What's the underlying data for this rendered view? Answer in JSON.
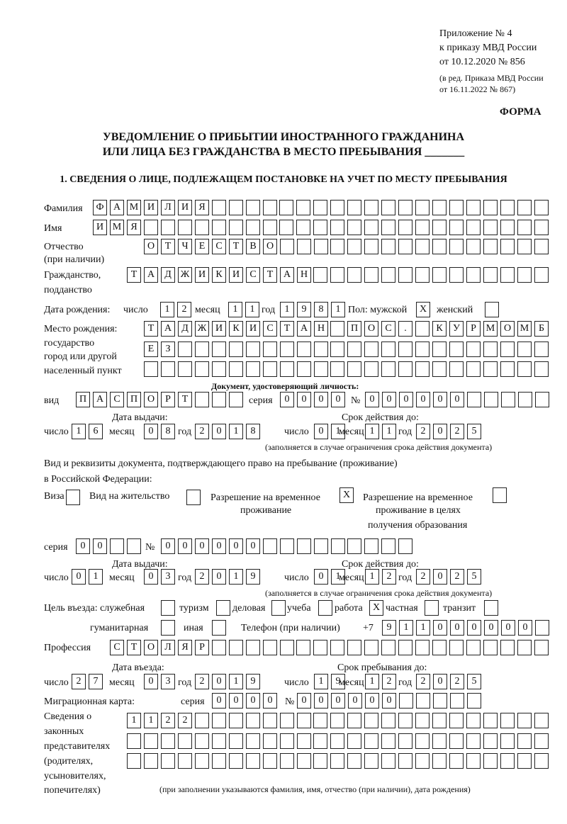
{
  "header": {
    "lines": [
      "Приложение № 4",
      "к приказу МВД России",
      "от 10.12.2020 № 856"
    ],
    "edit_lines": [
      "(в ред. Приказа МВД России",
      "от 16.11.2022 № 867)"
    ],
    "form": "ФОРМА"
  },
  "title": {
    "line1": "УВЕДОМЛЕНИЕ О ПРИБЫТИИ ИНОСТРАННОГО ГРАЖДАНИНА",
    "line2": "ИЛИ ЛИЦА БЕЗ ГРАЖДАНСТВА В МЕСТО ПРЕБЫВАНИЯ _______"
  },
  "section1": "1. СВЕДЕНИЯ О ЛИЦЕ, ПОДЛЕЖАЩЕМ ПОСТАНОВКЕ НА УЧЕТ ПО МЕСТУ ПРЕБЫВАНИЯ",
  "labels": {
    "surname": "Фамилия",
    "name": "Имя",
    "patronymic": "Отчество",
    "patronymic2": "(при наличии)",
    "citizenship": "Гражданство,",
    "citizenship2": "подданство",
    "dob": "Дата рождения:",
    "day": "число",
    "month": "месяц",
    "year": "год",
    "sex": "Пол: мужской",
    "female": "женский",
    "pob1": "Место рождения:",
    "pob2": "государство",
    "pob3": "город или другой",
    "pob4": "населенный пункт",
    "idDoc": "Документ, удостоверяющий личность:",
    "kind": "вид",
    "series": "серия",
    "number": "№",
    "issued": "Дата выдачи:",
    "valid": "Срок действия до:",
    "validNote": "(заполняется в случае ограничения срока действия документа)",
    "rf1": "Вид и реквизиты документа, подтверждающего право на пребывание (проживание)",
    "rf2": "в Российской Федерации:",
    "visa": "Виза",
    "vnzh": "Вид на жительство",
    "rvp1": "Разрешение на временное",
    "rvp2": "проживание",
    "rvpe1": "Разрешение на временное",
    "rvpe2": "проживание в целях",
    "rvpe3": "получения образования",
    "purpose": "Цель въезда: служебная",
    "tourism": "туризм",
    "business": "деловая",
    "study": "учеба",
    "work": "работа",
    "private": "частная",
    "transit": "транзит",
    "humanitarian": "гуманитарная",
    "other": "иная",
    "phone": "Телефон (при наличии)",
    "phonePrefix": "+7",
    "profession": "Профессия",
    "entryDate": "Дата въезда:",
    "stayUntil": "Срок пребывания до:",
    "migration": "Миграционная карта:",
    "reps1": "Сведения о",
    "reps2": "законных",
    "reps3": "представителях",
    "reps4": "(родителях,",
    "reps5": "усыновителях,",
    "reps6": "попечителях)",
    "repsNote": "(при заполнении указываются фамилия, имя, отчество (при наличии), дата рождения)"
  },
  "fields": {
    "surname": [
      "Ф",
      "А",
      "М",
      "И",
      "Л",
      "И",
      "Я"
    ],
    "name": [
      "И",
      "М",
      "Я"
    ],
    "patronymic": [
      "О",
      "Т",
      "Ч",
      "Е",
      "С",
      "Т",
      "В",
      "О"
    ],
    "citizenship": [
      "Т",
      "А",
      "Д",
      "Ж",
      "И",
      "К",
      "И",
      "С",
      "Т",
      "А",
      "Н"
    ],
    "dob_day": [
      "1",
      "2"
    ],
    "dob_month": [
      "1",
      "1"
    ],
    "dob_year": [
      "1",
      "9",
      "8",
      "1"
    ],
    "sex_male": "X",
    "sex_female": "",
    "pob1": [
      "Т",
      "А",
      "Д",
      "Ж",
      "И",
      "К",
      "И",
      "С",
      "Т",
      "А",
      "Н",
      "",
      "П",
      "О",
      "С",
      ".",
      "",
      "К",
      "У",
      "Р",
      "М",
      "О",
      "М",
      "Б"
    ],
    "pob2": [
      "Е",
      "З"
    ],
    "pob3": [],
    "doc_kind": [
      "П",
      "А",
      "С",
      "П",
      "О",
      "Р",
      "Т"
    ],
    "doc_series": [
      "0",
      "0",
      "0",
      "0"
    ],
    "doc_number": [
      "0",
      "0",
      "0",
      "0",
      "0",
      "0"
    ],
    "doc_issue_day": [
      "1",
      "6"
    ],
    "doc_issue_month": [
      "0",
      "8"
    ],
    "doc_issue_year": [
      "2",
      "0",
      "1",
      "8"
    ],
    "doc_valid_day": [
      "0",
      "1"
    ],
    "doc_valid_month": [
      "1",
      "1"
    ],
    "doc_valid_year": [
      "2",
      "0",
      "2",
      "5"
    ],
    "rf_visa": "",
    "rf_vnzh": "",
    "rf_rvp": "X",
    "rf_rvp_edu": "",
    "rf_series": [
      "0",
      "0"
    ],
    "rf_number": [
      "0",
      "0",
      "0",
      "0",
      "0",
      "0"
    ],
    "rf_issue_day": [
      "0",
      "1"
    ],
    "rf_issue_month": [
      "0",
      "3"
    ],
    "rf_issue_year": [
      "2",
      "0",
      "1",
      "9"
    ],
    "rf_valid_day": [
      "0",
      "1"
    ],
    "rf_valid_month": [
      "1",
      "2"
    ],
    "rf_valid_year": [
      "2",
      "0",
      "2",
      "5"
    ],
    "p_service": "",
    "p_tourism": "",
    "p_business": "",
    "p_study": "",
    "p_work": "X",
    "p_private": "",
    "p_transit": "",
    "p_humanitarian": "",
    "p_other": "",
    "phone": [
      "9",
      "1",
      "1",
      "0",
      "0",
      "0",
      "0",
      "0",
      "0"
    ],
    "profession": [
      "С",
      "Т",
      "О",
      "Л",
      "Я",
      "Р"
    ],
    "entry_day": [
      "2",
      "7"
    ],
    "entry_month": [
      "0",
      "3"
    ],
    "entry_year": [
      "2",
      "0",
      "1",
      "9"
    ],
    "stay_day": [
      "1",
      "9"
    ],
    "stay_month": [
      "1",
      "2"
    ],
    "stay_year": [
      "2",
      "0",
      "2",
      "5"
    ],
    "mig_series": [
      "0",
      "0",
      "0",
      "0"
    ],
    "mig_number": [
      "0",
      "0",
      "0",
      "0",
      "0",
      "0"
    ],
    "reps1": [
      "1",
      "1",
      "2",
      "2"
    ],
    "reps2": [],
    "reps3": []
  }
}
